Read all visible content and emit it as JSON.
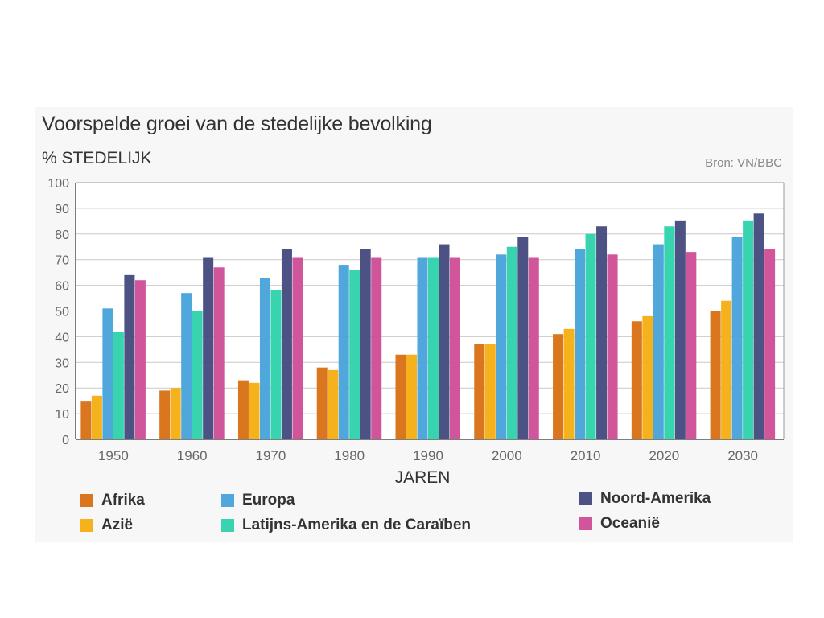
{
  "header": {
    "title": "Voorspelde groei van de stedelijke bevolking",
    "y_label": "% STEDELIJK",
    "source": "Bron: VN/BBC"
  },
  "chart_data": {
    "type": "bar",
    "title": "Voorspelde groei van de stedelijke bevolking",
    "xlabel": "JAREN",
    "ylabel": "% STEDELIJK",
    "ylim": [
      0,
      100
    ],
    "yticks": [
      0,
      10,
      20,
      30,
      40,
      50,
      60,
      70,
      80,
      90,
      100
    ],
    "grid": true,
    "legend_position": "bottom",
    "categories": [
      "1950",
      "1960",
      "1970",
      "1980",
      "1990",
      "2000",
      "2010",
      "2020",
      "2030"
    ],
    "series": [
      {
        "name": "Afrika",
        "color": "#d9761e",
        "values": [
          15,
          19,
          23,
          28,
          33,
          37,
          41,
          46,
          50
        ]
      },
      {
        "name": "Azië",
        "color": "#f6b21c",
        "values": [
          17,
          20,
          22,
          27,
          33,
          37,
          43,
          48,
          54
        ]
      },
      {
        "name": "Europa",
        "color": "#4fa7dc",
        "values": [
          51,
          57,
          63,
          68,
          71,
          72,
          74,
          76,
          79
        ]
      },
      {
        "name": "Latijns-Amerika en de Caraïben",
        "color": "#38d4b0",
        "values": [
          42,
          50,
          58,
          66,
          71,
          75,
          80,
          83,
          85
        ]
      },
      {
        "name": "Noord-Amerika",
        "color": "#4c5283",
        "values": [
          64,
          71,
          74,
          74,
          76,
          79,
          83,
          85,
          88
        ]
      },
      {
        "name": "Oceanië",
        "color": "#d1559b",
        "values": [
          62,
          67,
          71,
          71,
          71,
          71,
          72,
          73,
          74
        ]
      }
    ]
  }
}
